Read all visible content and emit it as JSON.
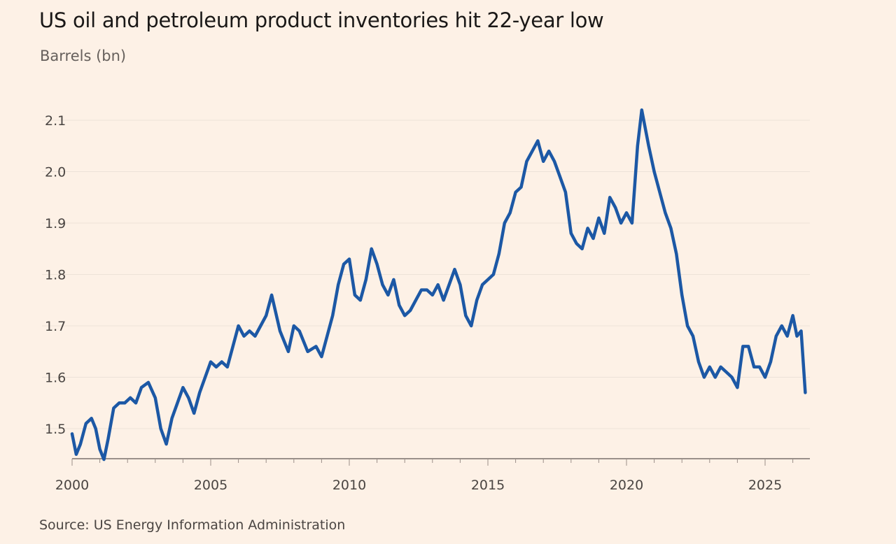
{
  "header": {
    "title": "US oil and petroleum product inventories hit 22-year low",
    "subtitle": "Barrels (bn)"
  },
  "footer": {
    "source": "Source: US Energy Information Administration"
  },
  "chart_data": {
    "type": "line",
    "title": "US oil and petroleum product inventories hit 22-year low",
    "xlabel": "",
    "ylabel": "Barrels (bn)",
    "xlim": [
      2000,
      2026.8
    ],
    "ylim": [
      1.43,
      2.13
    ],
    "y_ticks": [
      1.5,
      1.6,
      1.7,
      1.8,
      1.9,
      2.0,
      2.1
    ],
    "y_tick_labels": [
      "1.5",
      "1.6",
      "1.7",
      "1.8",
      "1.9",
      "2.0",
      "2.1"
    ],
    "x_ticks": [
      2000,
      2005,
      2010,
      2015,
      2020,
      2025
    ],
    "x_tick_labels": [
      "2000",
      "2005",
      "2010",
      "2015",
      "2020",
      "2025"
    ],
    "grid": true,
    "line_color": "#1C58A5",
    "series": [
      {
        "x": [
          2000.0,
          2000.15,
          2000.3,
          2000.5,
          2000.7,
          2000.85,
          2001.0,
          2001.15,
          2001.3,
          2001.5,
          2001.7,
          2001.9,
          2002.1,
          2002.3,
          2002.5,
          2002.75,
          2003.0,
          2003.2,
          2003.4,
          2003.6,
          2003.8,
          2004.0,
          2004.2,
          2004.4,
          2004.6,
          2004.8,
          2005.0,
          2005.2,
          2005.4,
          2005.6,
          2005.8,
          2006.0,
          2006.2,
          2006.4,
          2006.6,
          2006.8,
          2007.0,
          2007.2,
          2007.5,
          2007.8,
          2008.0,
          2008.2,
          2008.5,
          2008.8,
          2009.0,
          2009.2,
          2009.4,
          2009.6,
          2009.8,
          2010.0,
          2010.2,
          2010.4,
          2010.6,
          2010.8,
          2011.0,
          2011.2,
          2011.4,
          2011.6,
          2011.8,
          2012.0,
          2012.2,
          2012.4,
          2012.6,
          2012.8,
          2013.0,
          2013.2,
          2013.4,
          2013.6,
          2013.8,
          2014.0,
          2014.2,
          2014.4,
          2014.6,
          2014.8,
          2015.0,
          2015.2,
          2015.4,
          2015.6,
          2015.8,
          2016.0,
          2016.2,
          2016.4,
          2016.6,
          2016.8,
          2017.0,
          2017.2,
          2017.4,
          2017.6,
          2017.8,
          2018.0,
          2018.2,
          2018.4,
          2018.6,
          2018.8,
          2019.0,
          2019.2,
          2019.4,
          2019.6,
          2019.8,
          2020.0,
          2020.2,
          2020.4,
          2020.55,
          2020.8,
          2021.0,
          2021.2,
          2021.4,
          2021.6,
          2021.8,
          2022.0,
          2022.2,
          2022.4,
          2022.6,
          2022.8,
          2023.0,
          2023.2,
          2023.4,
          2023.6,
          2023.8,
          2024.0,
          2024.2,
          2024.4,
          2024.6,
          2024.8,
          2025.0,
          2025.2,
          2025.4,
          2025.6,
          2025.8,
          2026.0,
          2026.15,
          2026.3,
          2026.45
        ],
        "values": [
          1.49,
          1.45,
          1.47,
          1.51,
          1.52,
          1.5,
          1.46,
          1.44,
          1.48,
          1.54,
          1.55,
          1.55,
          1.56,
          1.55,
          1.58,
          1.59,
          1.56,
          1.5,
          1.47,
          1.52,
          1.55,
          1.58,
          1.56,
          1.53,
          1.57,
          1.6,
          1.63,
          1.62,
          1.63,
          1.62,
          1.66,
          1.7,
          1.68,
          1.69,
          1.68,
          1.7,
          1.72,
          1.76,
          1.69,
          1.65,
          1.7,
          1.69,
          1.65,
          1.66,
          1.64,
          1.68,
          1.72,
          1.78,
          1.82,
          1.83,
          1.76,
          1.75,
          1.79,
          1.85,
          1.82,
          1.78,
          1.76,
          1.79,
          1.74,
          1.72,
          1.73,
          1.75,
          1.77,
          1.77,
          1.76,
          1.78,
          1.75,
          1.78,
          1.81,
          1.78,
          1.72,
          1.7,
          1.75,
          1.78,
          1.79,
          1.8,
          1.84,
          1.9,
          1.92,
          1.96,
          1.97,
          2.02,
          2.04,
          2.06,
          2.02,
          2.04,
          2.02,
          1.99,
          1.96,
          1.88,
          1.86,
          1.85,
          1.89,
          1.87,
          1.91,
          1.88,
          1.95,
          1.93,
          1.9,
          1.92,
          1.9,
          2.05,
          2.12,
          2.05,
          2.0,
          1.96,
          1.92,
          1.89,
          1.84,
          1.76,
          1.7,
          1.68,
          1.63,
          1.6,
          1.62,
          1.6,
          1.62,
          1.61,
          1.6,
          1.58,
          1.66,
          1.66,
          1.62,
          1.62,
          1.6,
          1.63,
          1.68,
          1.7,
          1.68,
          1.72,
          1.68,
          1.69,
          1.57
        ]
      }
    ]
  }
}
